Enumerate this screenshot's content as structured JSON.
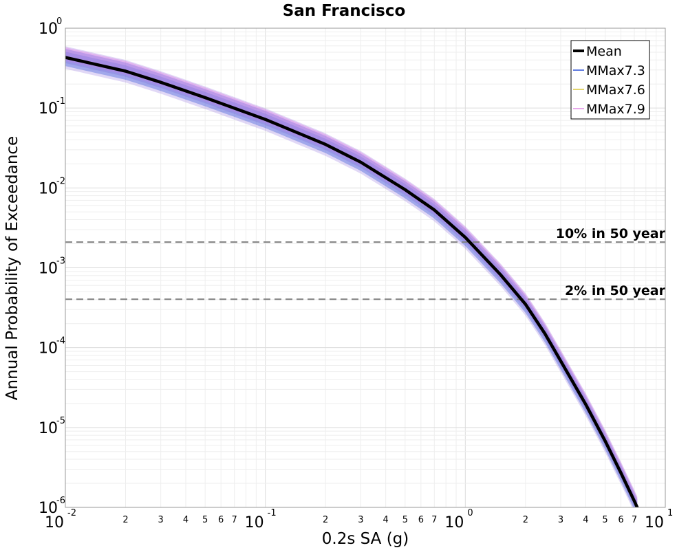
{
  "chart_data": {
    "type": "line",
    "title": "San Francisco",
    "xlabel": "0.2s SA (g)",
    "ylabel": "Annual Probability of Exceedance",
    "xscale": "log",
    "yscale": "log",
    "xlim": [
      0.01,
      10
    ],
    "ylim": [
      1e-06,
      1
    ],
    "grid": true,
    "legend_position": "top-right",
    "x_major_ticks": [
      {
        "value": 0.01,
        "base": "10",
        "exp": "-2"
      },
      {
        "value": 0.1,
        "base": "10",
        "exp": "-1"
      },
      {
        "value": 1,
        "base": "10",
        "exp": "0"
      },
      {
        "value": 10,
        "base": "10",
        "exp": "1"
      }
    ],
    "x_minor_ticks": [
      {
        "value": 0.02,
        "label": "2"
      },
      {
        "value": 0.03,
        "label": "3"
      },
      {
        "value": 0.04,
        "label": "4"
      },
      {
        "value": 0.05,
        "label": "5"
      },
      {
        "value": 0.06,
        "label": "6"
      },
      {
        "value": 0.07,
        "label": "7"
      },
      {
        "value": 0.2,
        "label": "2"
      },
      {
        "value": 0.3,
        "label": "3"
      },
      {
        "value": 0.4,
        "label": "4"
      },
      {
        "value": 0.5,
        "label": "5"
      },
      {
        "value": 0.6,
        "label": "6"
      },
      {
        "value": 0.7,
        "label": "7"
      },
      {
        "value": 2,
        "label": "2"
      },
      {
        "value": 3,
        "label": "3"
      },
      {
        "value": 4,
        "label": "4"
      },
      {
        "value": 5,
        "label": "5"
      },
      {
        "value": 6,
        "label": "6"
      },
      {
        "value": 7,
        "label": "7"
      }
    ],
    "y_major_ticks": [
      {
        "value": 1,
        "base": "10",
        "exp": "0"
      },
      {
        "value": 0.1,
        "base": "10",
        "exp": "-1"
      },
      {
        "value": 0.01,
        "base": "10",
        "exp": "-2"
      },
      {
        "value": 0.001,
        "base": "10",
        "exp": "-3"
      },
      {
        "value": 0.0001,
        "base": "10",
        "exp": "-4"
      },
      {
        "value": 1e-05,
        "base": "10",
        "exp": "-5"
      },
      {
        "value": 1e-06,
        "base": "10",
        "exp": "-6"
      }
    ],
    "reference_lines": [
      {
        "label": "10% in 50 year",
        "y": 0.0021,
        "color": "#808080"
      },
      {
        "label": "2% in 50 year",
        "y": 0.000404,
        "color": "#808080"
      }
    ],
    "series": [
      {
        "name": "Mean",
        "color": "#000000",
        "x": [
          0.01,
          0.02,
          0.03,
          0.05,
          0.1,
          0.2,
          0.3,
          0.5,
          0.7,
          1.0,
          1.5,
          2.0,
          2.5,
          3.0,
          4.0,
          5.0,
          6.0,
          7.0,
          7.5
        ],
        "y": [
          0.43,
          0.29,
          0.21,
          0.135,
          0.072,
          0.035,
          0.021,
          0.0095,
          0.0053,
          0.0024,
          0.00082,
          0.00035,
          0.00015,
          6.8e-05,
          1.95e-05,
          6.8e-06,
          2.7e-06,
          1.2e-06,
          8.2e-07
        ]
      },
      {
        "name": "MMax7.3",
        "color": "#2b4fd6",
        "band": "fan of branch curves spanning roughly 0.7x-1.35x the mean"
      },
      {
        "name": "MMax7.6",
        "color": "#d8c63a",
        "band": "fan of branch curves spanning roughly 0.7x-1.35x the mean"
      },
      {
        "name": "MMax7.9",
        "color": "#e08ae6",
        "band": "fan of branch curves spanning roughly 0.7x-1.35x the mean"
      }
    ]
  }
}
